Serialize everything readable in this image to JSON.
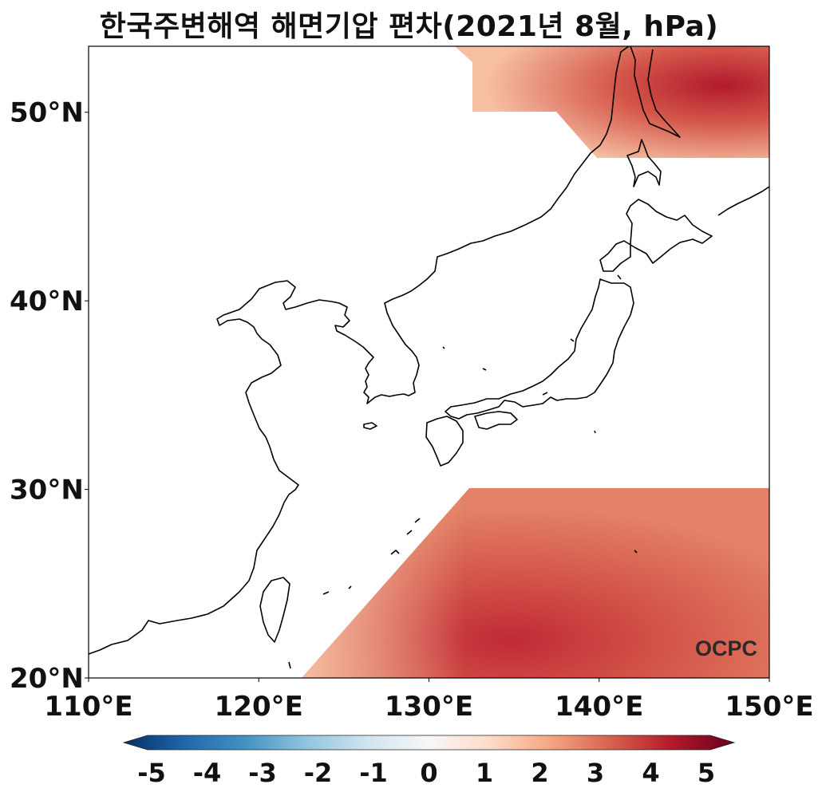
{
  "title": "한국주변해역 해면기압 편차(2021년 8월, hPa)",
  "map": {
    "lon_range": [
      110,
      150
    ],
    "lat_range": [
      20,
      53.5
    ],
    "lon_ticks": [
      110,
      120,
      130,
      140,
      150
    ],
    "lon_tick_labels": [
      "110°E",
      "120°E",
      "130°E",
      "140°E",
      "150°E"
    ],
    "lat_ticks": [
      20,
      30,
      40,
      50
    ],
    "lat_tick_labels": [
      "20°N",
      "30°N",
      "40°N",
      "50°N"
    ],
    "anomaly_regions": [
      {
        "name": "north",
        "color_low": "#f4b89c",
        "color_high": "#b61e2f",
        "peak_value": 4.5
      },
      {
        "name": "south",
        "color_low": "#f4b89c",
        "color_high": "#c4333a",
        "peak_value": 3.8
      }
    ]
  },
  "colorbar": {
    "ticks": [
      -5,
      -4,
      -3,
      -2,
      -1,
      0,
      1,
      2,
      3,
      4,
      5
    ],
    "tick_labels": [
      "-5",
      "-4",
      "-3",
      "-2",
      "-1",
      "0",
      "1",
      "2",
      "3",
      "4",
      "5"
    ],
    "colormap": "RdBu_r",
    "stops": [
      "#053061",
      "#2166ac",
      "#4393c3",
      "#92c5de",
      "#d1e5f0",
      "#f7f7f7",
      "#fddbc7",
      "#f4a582",
      "#d6604d",
      "#b2182b",
      "#67001f"
    ]
  },
  "logo": "OCPC"
}
